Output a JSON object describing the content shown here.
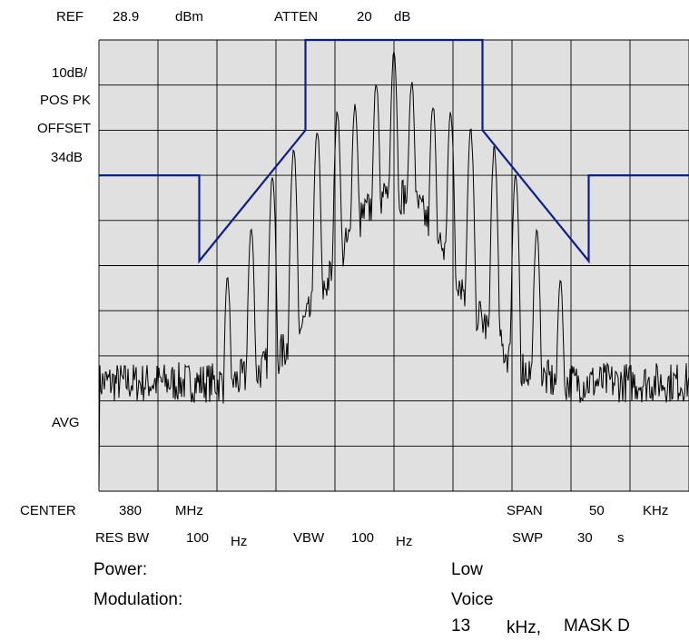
{
  "header": {
    "ref_label": "REF",
    "ref_value": "28.9",
    "ref_unit": "dBm",
    "atten_label": "ATTEN",
    "atten_value": "20",
    "atten_unit": "dB"
  },
  "left_labels": {
    "scale": "10dB/",
    "detector": "POS PK",
    "offset_label": "OFFSET",
    "offset_value": "34dB",
    "avg": "AVG"
  },
  "footer": {
    "center_label": "CENTER",
    "center_value": "380",
    "center_unit": "MHz",
    "span_label": "SPAN",
    "span_value": "50",
    "span_unit": "KHz",
    "resbw_label": "RES BW",
    "resbw_value": "100",
    "resbw_unit": "Hz",
    "vbw_label": "VBW",
    "vbw_value": "100",
    "vbw_unit": "Hz",
    "swp_label": "SWP",
    "swp_value": "30",
    "swp_unit": "s"
  },
  "info": {
    "power_label": "Power:",
    "power_value": "Low",
    "modulation_label": "Modulation:",
    "modulation_value": "Voice",
    "spacing_value": "13",
    "spacing_unit": "kHz,",
    "mask_value": "MASK D"
  },
  "colors": {
    "grid_bg": "#e0e0e0",
    "grid_line": "#000000",
    "mask": "#0a1e8c",
    "trace": "#000000"
  },
  "chart_data": {
    "type": "line",
    "title": "",
    "xlabel": "",
    "ylabel": "",
    "x_unit": "kHz offset from center",
    "xlim": [
      -25,
      25
    ],
    "ylim": [
      -71.1,
      28.9
    ],
    "grid": true,
    "divisions": {
      "x": 10,
      "y": 10
    },
    "mask": {
      "name": "MASK D",
      "x": [
        -25,
        -16.5,
        -16.5,
        -7.5,
        -7.5,
        7.5,
        7.5,
        16.5,
        16.5,
        25
      ],
      "y": [
        -1.1,
        -1.1,
        -20.1,
        8.9,
        28.9,
        28.9,
        8.9,
        -20.1,
        -1.1,
        -1.1
      ]
    },
    "trace": {
      "noise_floor_dbm": -47,
      "peaks": [
        {
          "x": 0,
          "y": 26.4
        },
        {
          "x": -1.5,
          "y": 19.5
        },
        {
          "x": 1.5,
          "y": 19.5
        },
        {
          "x": -3.3,
          "y": 14.5
        },
        {
          "x": 3.3,
          "y": 14.5
        },
        {
          "x": -4.8,
          "y": 12.9
        },
        {
          "x": 4.8,
          "y": 12.9
        },
        {
          "x": -6.5,
          "y": 8.9
        },
        {
          "x": 6.5,
          "y": 8.9
        },
        {
          "x": -8.5,
          "y": 4.9
        },
        {
          "x": 8.5,
          "y": 4.9
        },
        {
          "x": -10.3,
          "y": -1.1
        },
        {
          "x": 10.3,
          "y": -1.1
        },
        {
          "x": -12.1,
          "y": -13.1
        },
        {
          "x": 12.1,
          "y": -13.1
        },
        {
          "x": -14.1,
          "y": -24.1
        },
        {
          "x": 14.1,
          "y": -24.1
        }
      ]
    }
  }
}
